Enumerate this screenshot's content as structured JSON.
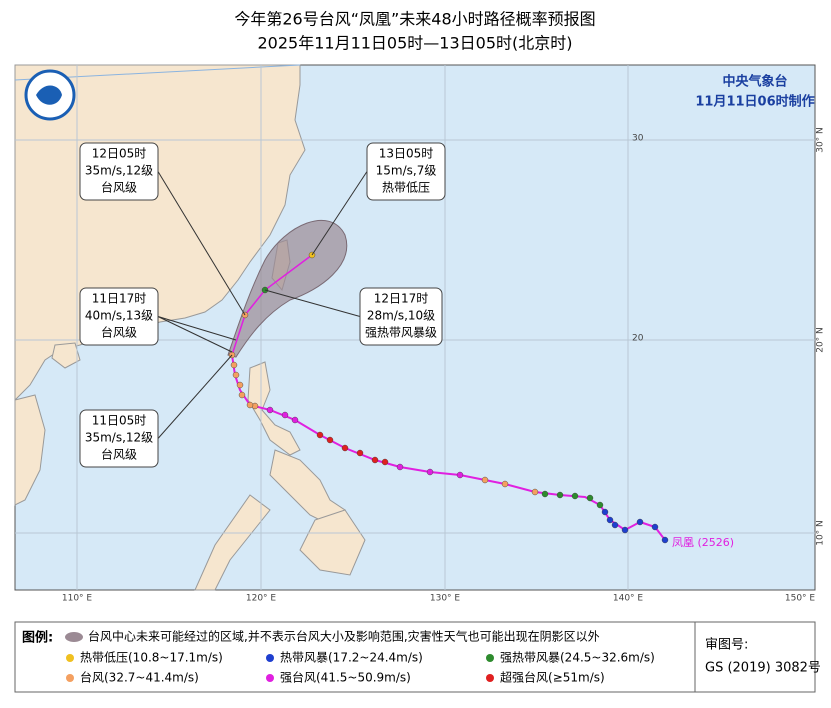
{
  "header": {
    "title": "今年第26号台风“凤凰”未来48小时路径概率预报图",
    "subtitle": "2025年11月11日05时—13日05时(北京时)"
  },
  "issuer": {
    "agency": "中央气象台",
    "time": "11月11日06时制作"
  },
  "map": {
    "lon_labels": [
      "110° E",
      "120° E",
      "130° E",
      "140° E",
      "150° E"
    ],
    "lat_labels": [
      "30",
      "20"
    ],
    "lat_labels_right": [
      "30° N",
      "20° N",
      "10° N"
    ],
    "typhoon_label": "凤凰 (2526)",
    "callouts": [
      {
        "lines": [
          "12日05时",
          "35m/s,12级",
          "台风级"
        ]
      },
      {
        "lines": [
          "13日05时",
          "15m/s,7级",
          "热带低压"
        ]
      },
      {
        "lines": [
          "11日17时",
          "40m/s,13级",
          "台风级"
        ]
      },
      {
        "lines": [
          "12日17时",
          "28m/s,10级",
          "强热带风暴级"
        ]
      },
      {
        "lines": [
          "11日05时",
          "35m/s,12级",
          "台风级"
        ]
      }
    ]
  },
  "legend": {
    "title": "图例:",
    "cone": "台风中心未来可能经过的区域,并不表示台风大小及影响范围,灾害性天气也可能出现在阴影区以外",
    "items": [
      {
        "label": "热带低压(10.8~17.1m/s)",
        "color": "#f0c020"
      },
      {
        "label": "热带风暴(17.2~24.4m/s)",
        "color": "#1f3fcf"
      },
      {
        "label": "强热带风暴(24.5~32.6m/s)",
        "color": "#2e8b2e"
      },
      {
        "label": "台风(32.7~41.4m/s)",
        "color": "#f4a060"
      },
      {
        "label": "强台风(41.5~50.9m/s)",
        "color": "#e020e0"
      },
      {
        "label": "超强台风(≥51m/s)",
        "color": "#e02020"
      }
    ]
  },
  "review": {
    "label": "审图号:",
    "number": "GS (2019) 3082号"
  }
}
